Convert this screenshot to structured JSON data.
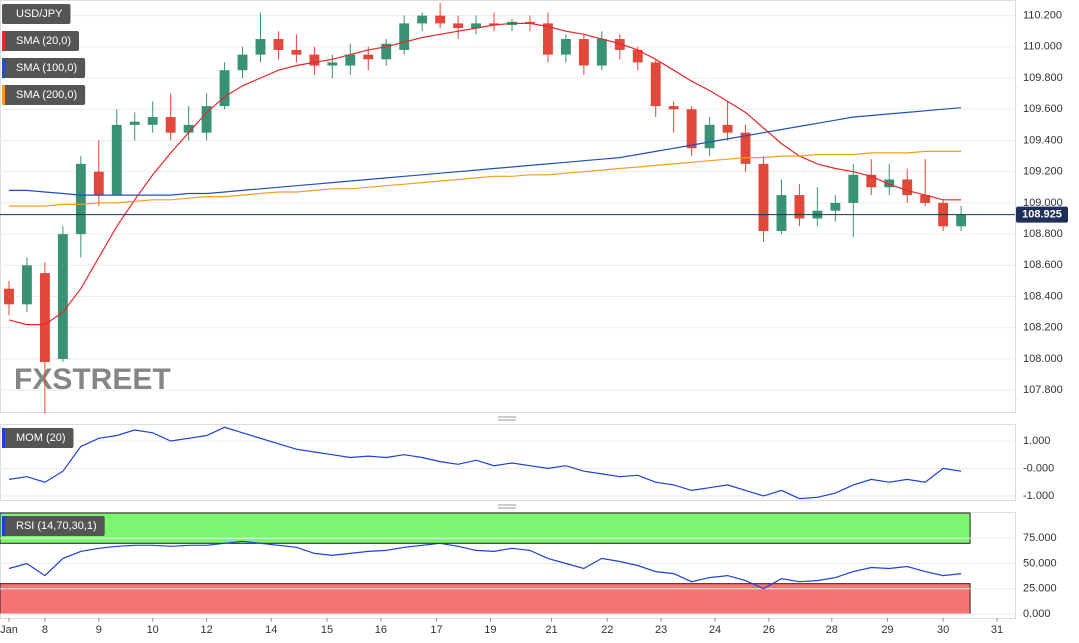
{
  "chart_data": [
    {
      "type": "candlestick",
      "title": "USD/JPY",
      "watermark": "FXSTREET",
      "xlim": [
        -0.5,
        56
      ],
      "ylim": [
        107.66,
        110.3
      ],
      "yticks": [
        {
          "value": 107.8,
          "label": "107.800"
        },
        {
          "value": 108.0,
          "label": "108.000"
        },
        {
          "value": 108.2,
          "label": "108.200"
        },
        {
          "value": 108.4,
          "label": "108.400"
        },
        {
          "value": 108.6,
          "label": "108.600"
        },
        {
          "value": 108.8,
          "label": "108.800"
        },
        {
          "value": 109.0,
          "label": "109.000"
        },
        {
          "value": 109.2,
          "label": "109.200"
        },
        {
          "value": 109.4,
          "label": "109.400"
        },
        {
          "value": 109.6,
          "label": "109.600"
        },
        {
          "value": 109.8,
          "label": "109.800"
        },
        {
          "value": 110.0,
          "label": "110.000"
        },
        {
          "value": 110.2,
          "label": "110.200"
        }
      ],
      "grid": true,
      "up_color": "#3a9276",
      "down_color": "#e2473b",
      "last_price": 108.925,
      "last_price_color": "#1e2f5a",
      "open": [
        108.45,
        108.35,
        108.55,
        108.0,
        108.8,
        109.2,
        109.05,
        109.5,
        109.5,
        109.55,
        109.45,
        109.45,
        109.62,
        109.85,
        109.95,
        110.05,
        109.98,
        109.95,
        109.88,
        109.88,
        109.95,
        109.92,
        109.98,
        110.15,
        110.2,
        110.15,
        110.12,
        110.15,
        110.14,
        110.16,
        110.15,
        109.95,
        110.05,
        109.88,
        110.05,
        109.98,
        109.9,
        109.62,
        109.6,
        109.35,
        109.5,
        109.45,
        109.25,
        108.82,
        109.05,
        108.9,
        108.95,
        109.0,
        109.18,
        109.1,
        109.15,
        109.05,
        109.0,
        108.85
      ],
      "high": [
        108.5,
        108.65,
        108.62,
        108.85,
        109.3,
        109.4,
        109.6,
        109.58,
        109.65,
        109.7,
        109.62,
        109.7,
        109.9,
        110.0,
        110.22,
        110.1,
        110.08,
        110.0,
        109.95,
        110.02,
        110.0,
        110.05,
        110.2,
        110.22,
        110.28,
        110.2,
        110.2,
        110.22,
        110.18,
        110.2,
        110.22,
        110.08,
        110.08,
        110.1,
        110.08,
        110.0,
        109.92,
        109.65,
        109.62,
        109.55,
        109.65,
        109.5,
        109.3,
        109.15,
        109.12,
        109.1,
        109.05,
        109.25,
        109.28,
        109.25,
        109.22,
        109.28,
        109.02,
        108.98
      ],
      "low": [
        108.28,
        108.3,
        107.65,
        107.98,
        108.65,
        108.98,
        109.05,
        109.4,
        109.45,
        109.4,
        109.4,
        109.4,
        109.6,
        109.8,
        109.9,
        109.92,
        109.9,
        109.82,
        109.8,
        109.82,
        109.85,
        109.88,
        109.95,
        110.1,
        110.12,
        110.05,
        110.08,
        110.1,
        110.1,
        110.1,
        109.9,
        109.9,
        109.82,
        109.85,
        109.92,
        109.85,
        109.55,
        109.45,
        109.3,
        109.3,
        109.4,
        109.2,
        108.75,
        108.8,
        108.85,
        108.85,
        108.88,
        108.78,
        109.05,
        109.05,
        109.0,
        108.98,
        108.82,
        108.82
      ],
      "close": [
        108.35,
        108.6,
        107.98,
        108.8,
        109.25,
        109.05,
        109.5,
        109.52,
        109.55,
        109.45,
        109.5,
        109.62,
        109.85,
        109.95,
        110.05,
        109.98,
        109.95,
        109.88,
        109.9,
        109.95,
        109.92,
        110.02,
        110.15,
        110.2,
        110.15,
        110.12,
        110.15,
        110.14,
        110.16,
        110.15,
        109.95,
        110.05,
        109.88,
        110.05,
        109.98,
        109.9,
        109.62,
        109.6,
        109.35,
        109.5,
        109.45,
        109.25,
        108.82,
        109.05,
        108.9,
        108.95,
        109.0,
        109.18,
        109.1,
        109.15,
        109.05,
        109.0,
        108.85,
        108.925
      ],
      "series": [
        {
          "name": "SMA (20,0)",
          "color": "#e8262b",
          "values": [
            108.25,
            108.22,
            108.22,
            108.3,
            108.45,
            108.65,
            108.85,
            109.02,
            109.18,
            109.32,
            109.45,
            109.58,
            109.68,
            109.75,
            109.8,
            109.85,
            109.88,
            109.9,
            109.92,
            109.95,
            109.98,
            110.0,
            110.03,
            110.06,
            110.08,
            110.1,
            110.12,
            110.14,
            110.15,
            110.15,
            110.13,
            110.1,
            110.08,
            110.05,
            110.02,
            109.98,
            109.92,
            109.85,
            109.78,
            109.72,
            109.65,
            109.58,
            109.48,
            109.38,
            109.3,
            109.25,
            109.22,
            109.2,
            109.17,
            109.12,
            109.08,
            109.05,
            109.02,
            109.02
          ]
        },
        {
          "name": "SMA (100,0)",
          "color": "#2150b4",
          "values": [
            109.08,
            109.08,
            109.07,
            109.06,
            109.05,
            109.05,
            109.05,
            109.05,
            109.05,
            109.05,
            109.06,
            109.06,
            109.07,
            109.08,
            109.09,
            109.1,
            109.11,
            109.12,
            109.13,
            109.14,
            109.15,
            109.16,
            109.17,
            109.18,
            109.19,
            109.2,
            109.21,
            109.22,
            109.23,
            109.24,
            109.25,
            109.26,
            109.27,
            109.28,
            109.29,
            109.31,
            109.33,
            109.35,
            109.37,
            109.39,
            109.41,
            109.43,
            109.45,
            109.47,
            109.49,
            109.51,
            109.53,
            109.55,
            109.56,
            109.57,
            109.58,
            109.59,
            109.6,
            109.61
          ]
        },
        {
          "name": "SMA (200,0)",
          "color": "#f39c1e",
          "values": [
            108.98,
            108.98,
            108.98,
            108.99,
            108.99,
            109.0,
            109.0,
            109.01,
            109.02,
            109.02,
            109.03,
            109.04,
            109.04,
            109.05,
            109.06,
            109.07,
            109.07,
            109.08,
            109.09,
            109.09,
            109.1,
            109.11,
            109.12,
            109.13,
            109.14,
            109.15,
            109.16,
            109.17,
            109.17,
            109.18,
            109.18,
            109.19,
            109.2,
            109.21,
            109.22,
            109.23,
            109.24,
            109.25,
            109.26,
            109.27,
            109.28,
            109.29,
            109.29,
            109.3,
            109.3,
            109.31,
            109.31,
            109.31,
            109.32,
            109.32,
            109.32,
            109.33,
            109.33,
            109.33
          ]
        }
      ]
    },
    {
      "type": "line",
      "xlim": [
        -0.5,
        56
      ],
      "ylim": [
        -1.15,
        1.62
      ],
      "grid": true,
      "yticks": [
        {
          "value": 1,
          "label": "1.000"
        },
        {
          "value": 0,
          "label": "-0.000"
        },
        {
          "value": -1,
          "label": "-1.000"
        }
      ],
      "series": [
        {
          "name": "MOM (20)",
          "color": "#1f3fd8",
          "values": [
            -0.4,
            -0.3,
            -0.5,
            -0.1,
            0.8,
            1.1,
            1.2,
            1.4,
            1.3,
            1.0,
            1.1,
            1.2,
            1.5,
            1.3,
            1.1,
            0.9,
            0.7,
            0.6,
            0.5,
            0.4,
            0.45,
            0.4,
            0.5,
            0.4,
            0.25,
            0.15,
            0.3,
            0.1,
            0.2,
            0.1,
            0.0,
            0.1,
            -0.1,
            -0.2,
            -0.3,
            -0.25,
            -0.5,
            -0.6,
            -0.8,
            -0.7,
            -0.6,
            -0.8,
            -1.0,
            -0.8,
            -1.1,
            -1.05,
            -0.9,
            -0.6,
            -0.4,
            -0.5,
            -0.4,
            -0.5,
            0.0,
            -0.1
          ]
        }
      ]
    },
    {
      "type": "line",
      "xlim": [
        -0.5,
        56
      ],
      "ylim": [
        -4,
        101
      ],
      "grid": true,
      "yticks": [
        {
          "value": 75,
          "label": "75.000"
        },
        {
          "value": 50,
          "label": "50.000"
        },
        {
          "value": 25,
          "label": "25.000"
        },
        {
          "value": 0,
          "label": "0.000"
        }
      ],
      "zones": [
        {
          "from": 70,
          "to": 100,
          "color": "#7ef570"
        },
        {
          "from": 0,
          "to": 30,
          "color": "#f87474"
        }
      ],
      "xticks": [
        {
          "value": 0,
          "label": "Jan"
        },
        {
          "value": 2.0,
          "label": "8"
        },
        {
          "value": 5.0,
          "label": "9"
        },
        {
          "value": 8.0,
          "label": "10"
        },
        {
          "value": 11.0,
          "label": "12"
        },
        {
          "value": 14.6,
          "label": "14"
        },
        {
          "value": 17.7,
          "label": "15"
        },
        {
          "value": 20.7,
          "label": "16"
        },
        {
          "value": 23.8,
          "label": "17"
        },
        {
          "value": 26.8,
          "label": "19"
        },
        {
          "value": 30.2,
          "label": "21"
        },
        {
          "value": 33.3,
          "label": "22"
        },
        {
          "value": 36.3,
          "label": "23"
        },
        {
          "value": 39.3,
          "label": "24"
        },
        {
          "value": 42.3,
          "label": "26"
        },
        {
          "value": 45.8,
          "label": "28"
        },
        {
          "value": 48.9,
          "label": "29"
        },
        {
          "value": 52.0,
          "label": "30"
        },
        {
          "value": 55.0,
          "label": "31"
        }
      ],
      "series": [
        {
          "name": "RSI (14,70,30,1)",
          "color": "#1f3fd8",
          "values": [
            45,
            50,
            38,
            55,
            62,
            65,
            67,
            68,
            68,
            67,
            68,
            68,
            70,
            72,
            70,
            68,
            66,
            60,
            58,
            60,
            62,
            63,
            66,
            68,
            70,
            67,
            63,
            62,
            65,
            63,
            55,
            50,
            45,
            55,
            52,
            48,
            42,
            40,
            32,
            36,
            38,
            33,
            25,
            35,
            32,
            33,
            36,
            42,
            46,
            45,
            47,
            42,
            38,
            40
          ]
        }
      ]
    }
  ]
}
